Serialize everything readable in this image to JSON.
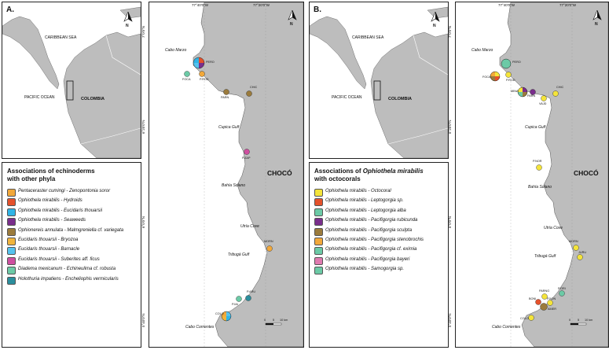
{
  "panelA": {
    "letter": "A.",
    "inset": {
      "caribbean": "CARIBBEAN SEA",
      "pacific": "PACIFIC OCEAN",
      "country": "COLOMBIA",
      "north": "N"
    },
    "map": {
      "coords_top": [
        "77°40'0\"W",
        "77°20'0\"W"
      ],
      "coords_side": [
        "7°0'0\"N",
        "6°20'0\"N",
        "6°0'0\"N",
        "5°40'0\"N"
      ],
      "north": "N",
      "region": "CHOCÓ",
      "places": [
        "Cabo Marzo",
        "Cupica Gulf",
        "Bahía Solano",
        "Utría Cove",
        "Tribugá Gulf",
        "Cabo Corrientes"
      ],
      "sites": [
        "PERO",
        "FOCA",
        "P.ROD",
        "PARN",
        "CHIC",
        "P.ZAP",
        "MORN",
        "P.ARU",
        "PJAI",
        "COLO"
      ],
      "scale": [
        "0",
        "5",
        "10 km"
      ]
    },
    "legend": {
      "title_line1": "Associations of echinoderms",
      "title_line2": "with other phyla",
      "items": [
        {
          "label": "Pentaceraster cumingi - Zenopontonia soror",
          "color": "#f2a83a"
        },
        {
          "label": "Ophiothela mirabilis - Hydroids",
          "color": "#e5512b"
        },
        {
          "label": "Ophiothela mirabilis - Eucidaris thouarsii",
          "color": "#2fb4e6"
        },
        {
          "label": "Ophiothela mirabilis - Seaweeds",
          "color": "#7a2e8c"
        },
        {
          "label": "Ophionereis annulata - Malmgreniella cf. variegata",
          "color": "#9b7b3c"
        },
        {
          "label": "Eucidaris thouarsii - Bryozoa",
          "color": "#f0b43c"
        },
        {
          "label": "Eucidaris thouarsii - Barnacle",
          "color": "#54c3ee"
        },
        {
          "label": "Eucidaris thouarsii - Suberites aff. ficus",
          "color": "#cf4fa0"
        },
        {
          "label": "Diadema mexicanum - Echineulima cf. robusta",
          "color": "#6ccaa6"
        },
        {
          "label": "Holothuria impatiens - Encheliophis vermicularis",
          "color": "#2b8e9d"
        }
      ]
    }
  },
  "panelB": {
    "letter": "B.",
    "inset": {
      "caribbean": "CARIBBEAN SEA",
      "pacific": "PACIFIC OCEAN",
      "country": "COLOMBIA",
      "north": "N"
    },
    "map": {
      "coords_top": [
        "77°40'0\"W",
        "77°20'0\"W"
      ],
      "coords_side": [
        "7°0'0\"N",
        "6°20'0\"N",
        "6°0'0\"N",
        "5°40'0\"N"
      ],
      "north": "N",
      "region": "CHOCÓ",
      "places": [
        "Cabo Marzo",
        "Cupica Gulf",
        "Bahía Solano",
        "Utría Cove",
        "Tribugá Gulf",
        "Cabo Corrientes"
      ],
      "sites": [
        "PERO",
        "FOCA",
        "P.ROD",
        "MINA",
        "PARN",
        "VAJD",
        "CHIC",
        "P.NOR",
        "MORN",
        "JURU",
        "PARNG",
        "P.ORI",
        "BONI",
        "PJION",
        "AMER",
        "COLO"
      ],
      "scale": [
        "0",
        "5",
        "10 km"
      ]
    },
    "legend": {
      "title_line1_plain": "Associations of ",
      "title_line1_italic": "Ophiothela mirabilis",
      "title_line2": "with octocorals",
      "items": [
        {
          "label": "Ophiothela mirabilis - Octocoral",
          "color": "#f4e43a"
        },
        {
          "label": "Ophiothela mirabilis - Leptogorgia sp.",
          "color": "#e5512b"
        },
        {
          "label": "Ophiothela mirabilis - Leptogorgia alba",
          "color": "#6ccaa6"
        },
        {
          "label": "Ophiothela mirabilis - Pacifigorgia rubicunda",
          "color": "#7a2e8c"
        },
        {
          "label": "Ophiothela mirabilis - Pacifigorgia sculpta",
          "color": "#9b7b3c"
        },
        {
          "label": "Ophiothela mirabilis - Pacifigorgia stenobrochis",
          "color": "#f2a83a"
        },
        {
          "label": "Ophiothela mirabilis - Pacifigorgia cf. eximia",
          "color": "#6ccaa6"
        },
        {
          "label": "Ophiothela mirabilis - Pacifigorgia bayeri",
          "color": "#e07ab0"
        },
        {
          "label": "Ophiothela mirabilis - Samogorgia sp.",
          "color": "#6ccaa6"
        }
      ]
    }
  },
  "colors": {
    "land": "#bdbdbd",
    "sea": "#ffffff",
    "border": "#222222"
  }
}
